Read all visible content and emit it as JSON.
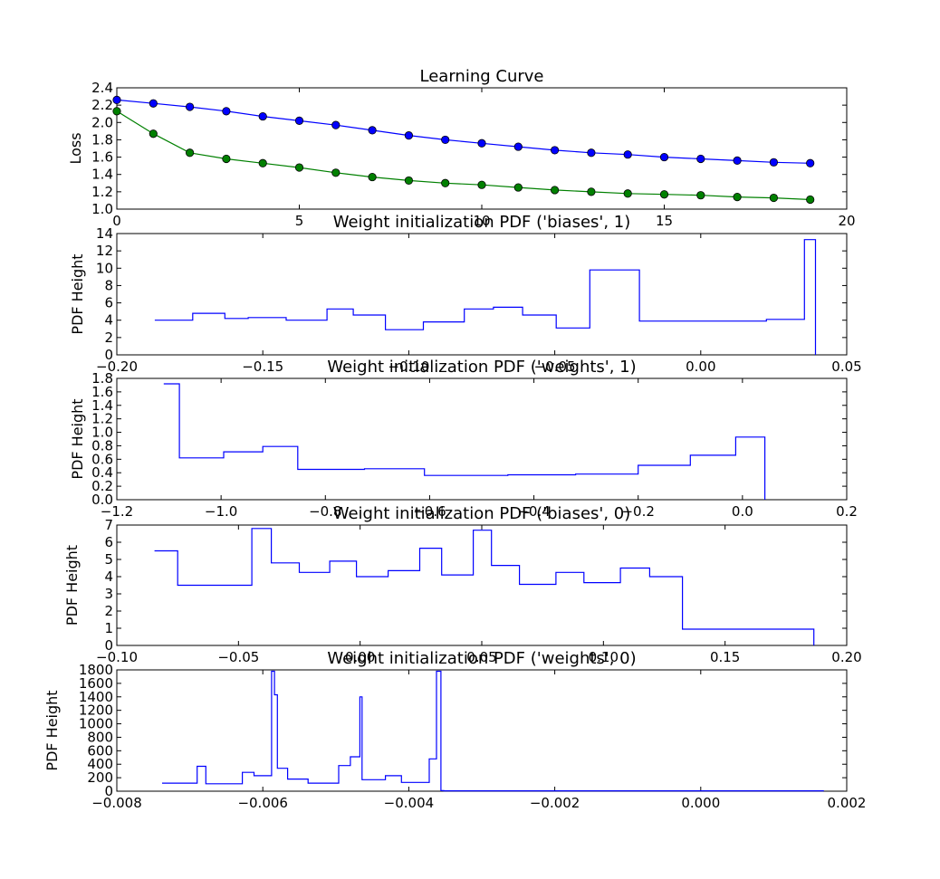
{
  "chart_data": [
    {
      "type": "line",
      "title": "Learning Curve",
      "xlabel": "",
      "ylabel": "Loss",
      "xlim": [
        0,
        20
      ],
      "ylim": [
        1.0,
        2.4
      ],
      "xticks": [
        0,
        5,
        10,
        15,
        20
      ],
      "xtick_labels": [
        "0",
        "5",
        "10",
        "15",
        "20"
      ],
      "yticks": [
        1.0,
        1.2,
        1.4,
        1.6,
        1.8,
        2.0,
        2.2,
        2.4
      ],
      "ytick_labels": [
        "1.0",
        "1.2",
        "1.4",
        "1.6",
        "1.8",
        "2.0",
        "2.2",
        "2.4"
      ],
      "grid": false,
      "marker": "circle",
      "series": [
        {
          "color": "#0000ff",
          "x": [
            0,
            1,
            2,
            3,
            4,
            5,
            6,
            7,
            8,
            9,
            10,
            11,
            12,
            13,
            14,
            15,
            16,
            17,
            18,
            19
          ],
          "values": [
            2.26,
            2.22,
            2.18,
            2.13,
            2.07,
            2.02,
            1.97,
            1.91,
            1.85,
            1.8,
            1.76,
            1.72,
            1.68,
            1.65,
            1.63,
            1.6,
            1.58,
            1.56,
            1.54,
            1.53
          ]
        },
        {
          "color": "#008000",
          "x": [
            0,
            1,
            2,
            3,
            4,
            5,
            6,
            7,
            8,
            9,
            10,
            11,
            12,
            13,
            14,
            15,
            16,
            17,
            18,
            19
          ],
          "values": [
            2.13,
            1.87,
            1.65,
            1.58,
            1.53,
            1.48,
            1.42,
            1.37,
            1.33,
            1.3,
            1.28,
            1.25,
            1.22,
            1.2,
            1.18,
            1.17,
            1.16,
            1.14,
            1.13,
            1.11
          ]
        }
      ]
    },
    {
      "type": "line",
      "title": "Weight initialization PDF ('biases', 1)",
      "xlabel": "",
      "ylabel": "PDF Height",
      "xlim": [
        -0.2,
        0.05
      ],
      "ylim": [
        0,
        14
      ],
      "xticks": [
        -0.2,
        -0.15,
        -0.1,
        -0.05,
        0.0,
        0.05
      ],
      "xtick_labels": [
        "−0.20",
        "−0.15",
        "−0.10",
        "−0.05",
        "0.00",
        "0.05"
      ],
      "yticks": [
        0,
        2,
        4,
        6,
        8,
        10,
        12,
        14
      ],
      "ytick_labels": [
        "0",
        "2",
        "4",
        "6",
        "8",
        "10",
        "12",
        "14"
      ],
      "grid": false,
      "series": [
        {
          "color": "#0000ff",
          "x": [
            -0.187,
            -0.174,
            -0.174,
            -0.163,
            -0.163,
            -0.155,
            -0.155,
            -0.142,
            -0.142,
            -0.128,
            -0.128,
            -0.119,
            -0.119,
            -0.108,
            -0.108,
            -0.095,
            -0.095,
            -0.081,
            -0.081,
            -0.071,
            -0.071,
            -0.061,
            -0.061,
            -0.0495,
            -0.0495,
            -0.038,
            -0.038,
            -0.021,
            -0.021,
            -0.0155,
            -0.0155,
            0.0,
            0.0,
            0.0225,
            0.0225,
            0.0355,
            0.0355,
            0.0393,
            0.0393
          ],
          "values": [
            4.0,
            4.0,
            4.8,
            4.8,
            4.2,
            4.2,
            4.3,
            4.3,
            4.0,
            4.0,
            5.3,
            5.3,
            4.6,
            4.6,
            2.9,
            2.9,
            3.8,
            3.8,
            5.3,
            5.3,
            5.5,
            5.5,
            4.6,
            4.6,
            3.1,
            3.1,
            9.8,
            9.8,
            3.9,
            3.9,
            3.9,
            3.9,
            3.9,
            3.9,
            4.1,
            4.1,
            13.3,
            13.3,
            0
          ]
        }
      ]
    },
    {
      "type": "line",
      "title": "Weight initialization PDF ('weights', 1)",
      "xlabel": "",
      "ylabel": "PDF Height",
      "xlim": [
        -1.2,
        0.2
      ],
      "ylim": [
        0,
        1.8
      ],
      "xticks": [
        -1.2,
        -1.0,
        -0.8,
        -0.6,
        -0.4,
        -0.2,
        0.0,
        0.2
      ],
      "xtick_labels": [
        "−1.2",
        "−1.0",
        "−0.8",
        "−0.6",
        "−0.4",
        "−0.2",
        "0.0",
        "0.2"
      ],
      "yticks": [
        0.0,
        0.2,
        0.4,
        0.6,
        0.8,
        1.0,
        1.2,
        1.4,
        1.6,
        1.8
      ],
      "ytick_labels": [
        "0.0",
        "0.2",
        "0.4",
        "0.6",
        "0.8",
        "1.0",
        "1.2",
        "1.4",
        "1.6",
        "1.8"
      ],
      "grid": false,
      "series": [
        {
          "color": "#0000ff",
          "x": [
            -1.11,
            -1.08,
            -1.08,
            -0.995,
            -0.995,
            -0.92,
            -0.92,
            -0.853,
            -0.853,
            -0.725,
            -0.725,
            -0.61,
            -0.61,
            -0.45,
            -0.45,
            -0.32,
            -0.32,
            -0.2,
            -0.2,
            -0.1,
            -0.1,
            -0.013,
            -0.013,
            0.043,
            0.043
          ],
          "values": [
            1.72,
            1.72,
            0.62,
            0.62,
            0.71,
            0.71,
            0.79,
            0.79,
            0.45,
            0.45,
            0.46,
            0.46,
            0.36,
            0.36,
            0.37,
            0.37,
            0.38,
            0.38,
            0.51,
            0.51,
            0.66,
            0.66,
            0.93,
            0.93,
            0
          ]
        }
      ]
    },
    {
      "type": "line",
      "title": "Weight initialization PDF ('biases', 0)",
      "xlabel": "",
      "ylabel": "PDF Height",
      "xlim": [
        -0.1,
        0.2
      ],
      "ylim": [
        0,
        7
      ],
      "xticks": [
        -0.1,
        -0.05,
        0.0,
        0.05,
        0.1,
        0.15,
        0.2
      ],
      "xtick_labels": [
        "−0.10",
        "−0.05",
        "0.00",
        "0.05",
        "0.10",
        "0.15",
        "0.20"
      ],
      "yticks": [
        0,
        1,
        2,
        3,
        4,
        5,
        6,
        7
      ],
      "ytick_labels": [
        "0",
        "1",
        "2",
        "3",
        "4",
        "5",
        "6",
        "7"
      ],
      "grid": false,
      "series": [
        {
          "color": "#0000ff",
          "x": [
            -0.0845,
            -0.075,
            -0.075,
            -0.0445,
            -0.0445,
            -0.0365,
            -0.0365,
            -0.025,
            -0.025,
            -0.0125,
            -0.0125,
            -0.0015,
            -0.0015,
            0.0115,
            0.0115,
            0.0245,
            0.0245,
            0.0335,
            0.0335,
            0.0465,
            0.0465,
            0.054,
            0.054,
            0.0655,
            0.0655,
            0.0805,
            0.0805,
            0.092,
            0.092,
            0.107,
            0.107,
            0.119,
            0.119,
            0.1325,
            0.1325,
            0.1865,
            0.1865
          ],
          "values": [
            5.5,
            5.5,
            3.5,
            3.5,
            6.8,
            6.8,
            4.8,
            4.8,
            4.25,
            4.25,
            4.9,
            4.9,
            4.0,
            4.0,
            4.35,
            4.35,
            5.65,
            5.65,
            4.1,
            4.1,
            6.7,
            6.7,
            4.65,
            4.65,
            3.55,
            3.55,
            4.25,
            4.25,
            3.65,
            3.65,
            4.5,
            4.5,
            4.0,
            4.0,
            0.95,
            0.95,
            0
          ]
        }
      ]
    },
    {
      "type": "line",
      "title": "Weight initialization PDF ('weights', 0)",
      "xlabel": "",
      "ylabel": "PDF Height",
      "xlim": [
        -0.008,
        0.002
      ],
      "ylim": [
        0,
        1800
      ],
      "xticks": [
        -0.008,
        -0.006,
        -0.004,
        -0.002,
        0.0,
        0.002
      ],
      "xtick_labels": [
        "−0.008",
        "−0.006",
        "−0.004",
        "−0.002",
        "0.000",
        "0.002"
      ],
      "yticks": [
        0,
        200,
        400,
        600,
        800,
        1000,
        1200,
        1400,
        1600,
        1800
      ],
      "ytick_labels": [
        "0",
        "200",
        "400",
        "600",
        "800",
        "1000",
        "1200",
        "1400",
        "1600",
        "1800"
      ],
      "grid": false,
      "series": [
        {
          "color": "#0000ff",
          "x": [
            -0.00738,
            -0.0069,
            -0.0069,
            -0.00678,
            -0.00678,
            -0.00628,
            -0.00628,
            -0.00612,
            -0.00612,
            -0.00588,
            -0.00588,
            -0.00584,
            -0.00584,
            -0.0058,
            -0.0058,
            -0.00566,
            -0.00566,
            -0.00538,
            -0.00538,
            -0.00496,
            -0.00496,
            -0.0048,
            -0.0048,
            -0.00467,
            -0.00467,
            -0.00464,
            -0.00464,
            -0.00432,
            -0.00432,
            -0.0041,
            -0.0041,
            -0.00372,
            -0.00372,
            -0.00362,
            -0.00362,
            -0.00356,
            -0.00356,
            -0.00352,
            -0.00352,
            0.00168,
            0.00168
          ],
          "values": [
            120,
            120,
            370,
            370,
            110,
            110,
            280,
            280,
            230,
            230,
            1780,
            1780,
            1430,
            1430,
            340,
            340,
            180,
            180,
            120,
            120,
            380,
            380,
            510,
            510,
            1400,
            1400,
            170,
            170,
            230,
            230,
            130,
            130,
            480,
            480,
            1780,
            1780,
            8,
            8,
            5,
            5,
            0
          ]
        }
      ]
    }
  ]
}
